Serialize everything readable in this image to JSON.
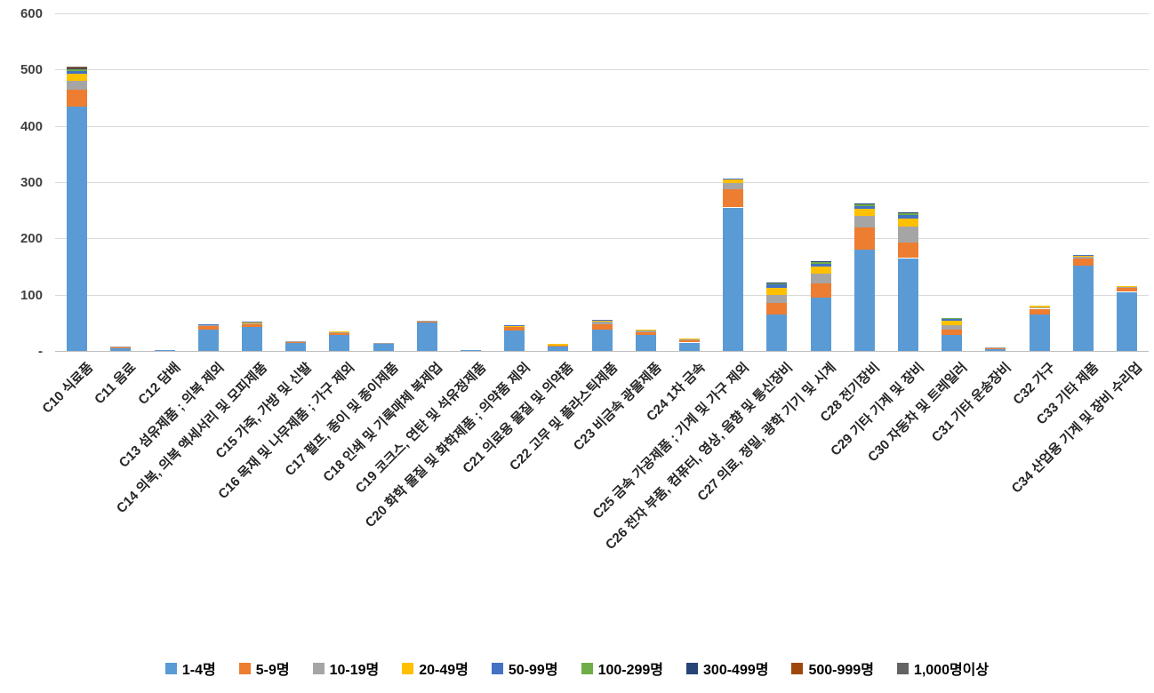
{
  "colors": {
    "background": "#FFFFFF",
    "gridline": "#D9D9D9",
    "axis_line": "#BFBFBF",
    "axis_text": "#404040",
    "label_text": "#262626",
    "legend_text": "#000000"
  },
  "y_axis": {
    "tick_labels": [
      "600",
      "500",
      "400",
      "300",
      "200",
      "100",
      "-"
    ],
    "max": 600,
    "step": 100
  },
  "chart_data": {
    "type": "bar",
    "stacked": true,
    "title": "",
    "xlabel": "",
    "ylabel": "",
    "ylim": [
      0,
      600
    ],
    "grid": true,
    "legend_position": "bottom",
    "categories": [
      "C10 식료품",
      "C11 음료",
      "C12 담배",
      "C13 섬유제품 ; 의복 제외",
      "C14 의복, 의복 액세서리 및 모피제품",
      "C15 가죽, 가방 및 신발",
      "C16 목재 및 나무제품 ; 가구 제외",
      "C17 펄프, 종이 및 종이제품",
      "C18 인쇄 및 기록매체 복제업",
      "C19 코크스, 연탄 및 석유정제품",
      "C20 화학 물질 및 화학제품 ; 의약품 제외",
      "C21 의료용 물질 및 의약품",
      "C22 고무 및 플라스틱제품",
      "C23 비금속 광물제품",
      "C24 1차 금속",
      "C25 금속 가공제품 ; 기계 및 가구 제외",
      "C26 전자 부품, 컴퓨터, 영상, 음향 및 통신장비",
      "C27 의료, 정밀, 광학 기기 및 시계",
      "C28 전기장비",
      "C29 기타 기계 및 장비",
      "C30 자동차 및 트레일러",
      "C31 기타 운송장비",
      "C32 가구",
      "C33 기타 제품",
      "C34 산업용 기계 및 장비 수리업"
    ],
    "series": [
      {
        "name": "1-4명",
        "color": "#5B9BD5",
        "values": [
          435,
          5,
          2,
          38,
          43,
          14,
          28,
          12,
          50,
          1,
          37,
          8,
          38,
          28,
          15,
          255,
          65,
          95,
          180,
          165,
          28,
          4,
          65,
          152,
          105
        ]
      },
      {
        "name": "5-9명",
        "color": "#ED7D31",
        "values": [
          30,
          2,
          0,
          6,
          5,
          2,
          4,
          2,
          2,
          0,
          5,
          2,
          10,
          5,
          4,
          32,
          20,
          25,
          40,
          28,
          10,
          1,
          10,
          12,
          7
        ]
      },
      {
        "name": "10-19명",
        "color": "#A5A5A5",
        "values": [
          15,
          1,
          0,
          2,
          2,
          1,
          2,
          1,
          1,
          0,
          2,
          0,
          4,
          3,
          2,
          12,
          15,
          18,
          20,
          28,
          8,
          1,
          3,
          4,
          2
        ]
      },
      {
        "name": "20-49명",
        "color": "#FFC000",
        "values": [
          12,
          0,
          0,
          1,
          1,
          0,
          1,
          0,
          0,
          0,
          1,
          2,
          2,
          2,
          1,
          5,
          12,
          12,
          12,
          15,
          8,
          0,
          2,
          2,
          1
        ]
      },
      {
        "name": "50-99명",
        "color": "#4472C4",
        "values": [
          6,
          0,
          0,
          1,
          1,
          0,
          0,
          0,
          0,
          0,
          1,
          0,
          1,
          0,
          0,
          3,
          6,
          4,
          6,
          6,
          3,
          0,
          0,
          1,
          0
        ]
      },
      {
        "name": "100-299명",
        "color": "#70AD47",
        "values": [
          3,
          0,
          0,
          0,
          0,
          0,
          0,
          0,
          0,
          0,
          0,
          0,
          0,
          0,
          0,
          0,
          2,
          5,
          2,
          2,
          1,
          0,
          0,
          0,
          0
        ]
      },
      {
        "name": "300-499명",
        "color": "#264478",
        "values": [
          2,
          0,
          0,
          0,
          0,
          0,
          0,
          0,
          0,
          0,
          0,
          0,
          0,
          0,
          0,
          0,
          2,
          1,
          2,
          2,
          0,
          0,
          0,
          0,
          0
        ]
      },
      {
        "name": "500-999명",
        "color": "#9E480E",
        "values": [
          1,
          0,
          0,
          0,
          0,
          0,
          0,
          0,
          0,
          0,
          0,
          0,
          0,
          0,
          0,
          0,
          0,
          0,
          0,
          0,
          0,
          0,
          0,
          0,
          0
        ]
      },
      {
        "name": "1,000명이상",
        "color": "#636363",
        "values": [
          1,
          0,
          0,
          0,
          0,
          0,
          0,
          0,
          0,
          0,
          0,
          0,
          0,
          0,
          0,
          0,
          0,
          0,
          0,
          0,
          0,
          0,
          0,
          0,
          0
        ]
      }
    ]
  }
}
